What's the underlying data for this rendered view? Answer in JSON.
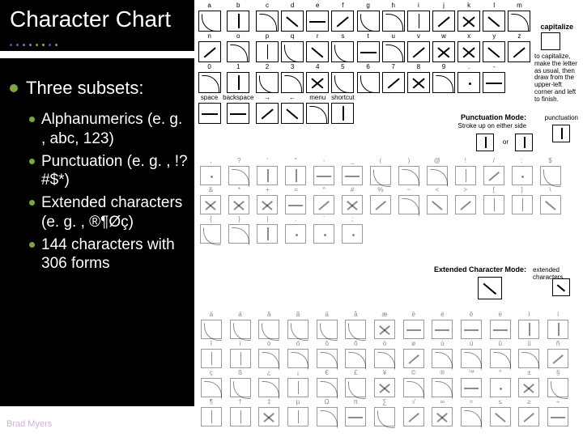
{
  "title": "Character Chart",
  "accent_color": "#7aa83a",
  "footer_color": "#c9b0e0",
  "main_bullet": "Three subsets:",
  "sub_bullets": [
    "Alphanumerics (e. g. , abc, 123)",
    "Punctuation (e. g. , !? #$*)",
    "Extended characters (e. g. , ®¶Øç)",
    "144 characters with 306 forms"
  ],
  "footer": "Brad Myers",
  "chart": {
    "rows": [
      {
        "labels": [
          "a",
          "b",
          "c",
          "d",
          "e",
          "f",
          "g",
          "h",
          "i",
          "j",
          "k",
          "l",
          "m"
        ],
        "styles": [
          "curve2",
          "vline",
          "curve1",
          "bslash",
          "hline",
          "dslash",
          "curve2",
          "curve1",
          "vline",
          "dslash",
          "cross",
          "bslash",
          "curve1"
        ]
      },
      {
        "labels": [
          "n",
          "o",
          "p",
          "q",
          "r",
          "s",
          "t",
          "u",
          "v",
          "w",
          "x",
          "y",
          "z"
        ],
        "styles": [
          "dslash",
          "curve1",
          "vline",
          "curve2",
          "bslash",
          "curve2",
          "hline",
          "curve1",
          "dslash",
          "cross",
          "cross",
          "bslash",
          "dslash"
        ]
      },
      {
        "labels": [
          "0",
          "1",
          "2",
          "3",
          "4",
          "5",
          "6",
          "7",
          "8",
          "9",
          ".",
          "-",
          ""
        ],
        "styles": [
          "curve1",
          "vline",
          "curve2",
          "curve1",
          "cross",
          "curve2",
          "curve2",
          "dslash",
          "cross",
          "curve1",
          "udot",
          "hline",
          ""
        ]
      },
      {
        "labels": [
          "space",
          "backspace",
          "→",
          "←",
          "menu",
          "shortcut",
          "",
          "",
          "",
          "",
          "",
          "",
          ""
        ],
        "styles": [
          "hline",
          "hline",
          "dslash",
          "bslash",
          "curve1",
          "vline",
          "",
          "",
          "",
          "",
          "",
          "",
          ""
        ],
        "partial": 6
      }
    ],
    "punct_rows": [
      {
        "labels": [
          ",",
          "?",
          "'",
          "\"",
          "-",
          "_",
          "(",
          ")",
          "@",
          "!",
          "/",
          ":",
          "$"
        ],
        "styles": [
          "udot",
          "curve1",
          "vline",
          "vline",
          "hline",
          "hline",
          "curve2",
          "curve1",
          "curve1",
          "vline",
          "dslash",
          "udot",
          "curve2"
        ]
      },
      {
        "labels": [
          "&",
          "*",
          "+",
          "=",
          "^",
          "#",
          "%",
          "~",
          "<",
          ">",
          "[",
          "]",
          "\\"
        ],
        "styles": [
          "cross",
          "cross",
          "cross",
          "hline",
          "dslash",
          "cross",
          "dslash",
          "curve1",
          "bslash",
          "dslash",
          "vline",
          "vline",
          "bslash"
        ]
      },
      {
        "labels": [
          "{",
          "}",
          "|",
          ".",
          "`",
          ";",
          "",
          "",
          "",
          "",
          "",
          "",
          ""
        ],
        "styles": [
          "curve2",
          "curve1",
          "vline",
          "udot",
          "udot",
          "udot",
          "",
          "",
          "",
          "",
          "",
          "",
          ""
        ],
        "partial": 6
      }
    ],
    "ext_rows": [
      {
        "labels": [
          "à",
          "á",
          "â",
          "ã",
          "ä",
          "å",
          "æ",
          "è",
          "é",
          "ê",
          "ë",
          "ì",
          "í"
        ],
        "styles": [
          "curve2",
          "curve2",
          "curve2",
          "curve2",
          "curve2",
          "curve2",
          "cross",
          "hline",
          "hline",
          "hline",
          "hline",
          "vline",
          "vline"
        ]
      },
      {
        "labels": [
          "î",
          "ï",
          "ò",
          "ó",
          "ô",
          "õ",
          "ö",
          "ø",
          "ù",
          "ú",
          "û",
          "ü",
          "ñ"
        ],
        "styles": [
          "vline",
          "vline",
          "curve1",
          "curve1",
          "curve1",
          "curve1",
          "curve1",
          "dslash",
          "curve1",
          "curve1",
          "curve1",
          "curve1",
          "dslash"
        ]
      },
      {
        "labels": [
          "ç",
          "ß",
          "¿",
          "¡",
          "€",
          "£",
          "¥",
          "©",
          "®",
          "™",
          "°",
          "±",
          "§"
        ],
        "styles": [
          "curve1",
          "curve2",
          "curve1",
          "vline",
          "curve1",
          "curve2",
          "cross",
          "curve1",
          "curve1",
          "hline",
          "udot",
          "cross",
          "curve2"
        ]
      },
      {
        "labels": [
          "¶",
          "†",
          "‡",
          "µ",
          "Ω",
          "π",
          "∑",
          "√",
          "∞",
          "≈",
          "≤",
          "≥",
          "÷"
        ],
        "styles": [
          "vline",
          "vline",
          "cross",
          "vline",
          "curve1",
          "hline",
          "curve2",
          "dslash",
          "cross",
          "curve1",
          "bslash",
          "dslash",
          "hline"
        ]
      }
    ],
    "labels": {
      "capitalize": "capitalize",
      "cap_note": "to capitalize, make the letter as usual, then draw from the upper-left corner and left to finish.",
      "punct_mode": "Punctuation Mode:",
      "punct_note": "Stroke up on either side",
      "punct_tag": "punctuation",
      "or": "or",
      "ext_mode": "Extended Character Mode:",
      "ext_tag": "extended characters"
    }
  }
}
